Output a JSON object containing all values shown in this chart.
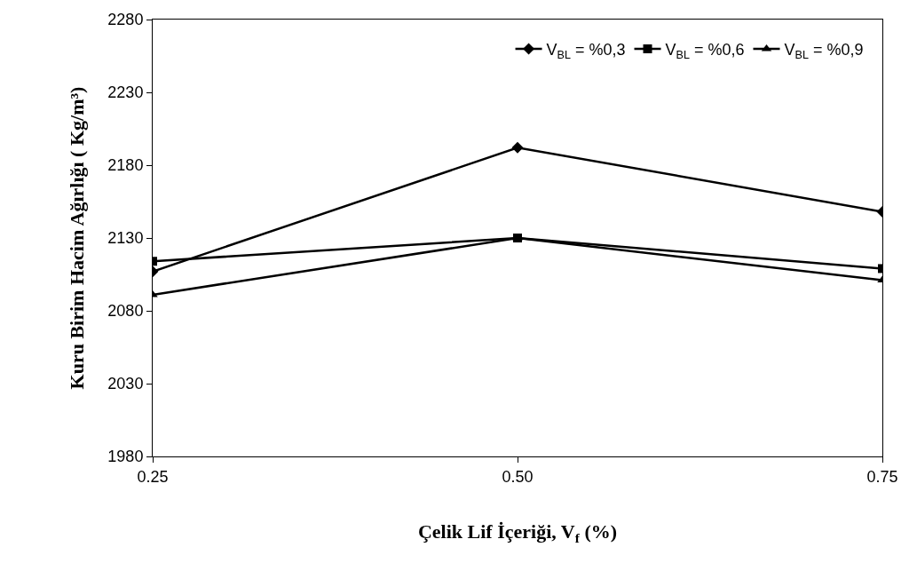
{
  "chart_data": {
    "type": "line",
    "xlabel": "Çelik Lif İçeriği, V$_{f}$ (%)",
    "ylabel": "Kuru Birim Hacim Ağırlığı ( Kg/m³)",
    "x": [
      0.25,
      0.5,
      0.75
    ],
    "series": [
      {
        "name": "V$_{BL}$ = %0,3",
        "color": "#000000",
        "marker": "diamond",
        "values": [
          2107,
          2192,
          2148
        ]
      },
      {
        "name": "V$_{BL}$ = %0,6",
        "color": "#000000",
        "marker": "square",
        "values": [
          2114,
          2130,
          2109
        ]
      },
      {
        "name": "V$_{BL}$ = %0,9",
        "color": "#000000",
        "marker": "triangle",
        "values": [
          2091,
          2130,
          2101
        ]
      }
    ],
    "xlim": [
      0.25,
      0.75
    ],
    "xticks": [
      {
        "value": 0.25,
        "label": "0.25"
      },
      {
        "value": 0.5,
        "label": "0.50"
      },
      {
        "value": 0.75,
        "label": "0.75"
      }
    ],
    "ylim": [
      1980,
      2280
    ],
    "yticks": [
      1980,
      2030,
      2080,
      2130,
      2180,
      2230,
      2280
    ],
    "legend": "top right",
    "line_style": "solid"
  }
}
